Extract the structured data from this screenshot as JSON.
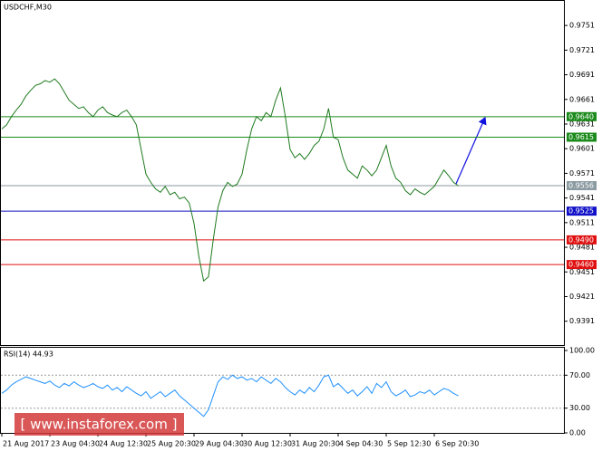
{
  "chart_data": [
    {
      "type": "line",
      "title": "USDCHF,M30",
      "color": "#1f7a1f",
      "values": [
        0.9625,
        0.963,
        0.964,
        0.9648,
        0.9655,
        0.9665,
        0.9672,
        0.9678,
        0.968,
        0.9684,
        0.9682,
        0.9686,
        0.968,
        0.967,
        0.966,
        0.9655,
        0.965,
        0.9652,
        0.9645,
        0.964,
        0.9648,
        0.9652,
        0.9645,
        0.9642,
        0.964,
        0.9645,
        0.9648,
        0.964,
        0.963,
        0.96,
        0.957,
        0.956,
        0.9552,
        0.9548,
        0.9555,
        0.9545,
        0.9548,
        0.954,
        0.9542,
        0.9535,
        0.951,
        0.947,
        0.944,
        0.9445,
        0.949,
        0.953,
        0.955,
        0.956,
        0.9555,
        0.9558,
        0.957,
        0.96,
        0.9625,
        0.964,
        0.9635,
        0.9645,
        0.964,
        0.966,
        0.9675,
        0.964,
        0.96,
        0.959,
        0.9595,
        0.9588,
        0.9595,
        0.9605,
        0.961,
        0.9625,
        0.965,
        0.9615,
        0.9612,
        0.959,
        0.9575,
        0.957,
        0.9565,
        0.958,
        0.9575,
        0.9568,
        0.9575,
        0.959,
        0.9605,
        0.958,
        0.9565,
        0.956,
        0.955,
        0.9545,
        0.9552,
        0.9548,
        0.9545,
        0.955,
        0.9555,
        0.9565,
        0.9575,
        0.9568,
        0.956,
        0.9556
      ],
      "ylim": [
        0.9362,
        0.9782
      ],
      "yticks": [
        0.9751,
        0.9721,
        0.9691,
        0.9661,
        0.9631,
        0.9601,
        0.9571,
        0.9541,
        0.9511,
        0.9481,
        0.9451,
        0.9421,
        0.9391
      ],
      "levels": [
        {
          "value": 0.964,
          "label": "0.9640",
          "color": "#1a8a1a"
        },
        {
          "value": 0.9615,
          "label": "0.9615",
          "color": "#1a8a1a"
        },
        {
          "value": 0.9556,
          "label": "0.9556",
          "color": "#8a9aa0"
        },
        {
          "value": 0.9525,
          "label": "0.9525",
          "color": "#1010c8"
        },
        {
          "value": 0.949,
          "label": "0.9490",
          "color": "#e01010"
        },
        {
          "value": 0.946,
          "label": "0.9460",
          "color": "#e01010"
        }
      ]
    },
    {
      "type": "line",
      "title": "RSI(14) 44.93",
      "color": "#1e90ff",
      "categories": [
        "21 Aug 2017",
        null,
        null,
        null,
        null,
        null,
        null,
        null,
        null,
        null,
        "23 Aug 04:30",
        null,
        null,
        null,
        null,
        null,
        null,
        null,
        null,
        null,
        "24 Aug 12:30",
        null,
        null,
        null,
        null,
        null,
        null,
        null,
        null,
        null,
        "25 Aug 20:30",
        null,
        null,
        null,
        null,
        null,
        null,
        null,
        null,
        null,
        "29 Aug 04:30",
        null,
        null,
        null,
        null,
        null,
        null,
        null,
        null,
        null,
        "30 Aug 12:30",
        null,
        null,
        null,
        null,
        null,
        null,
        null,
        null,
        null,
        "31 Aug 20:30",
        null,
        null,
        null,
        null,
        null,
        null,
        null,
        null,
        null,
        "4 Sep 04:30",
        null,
        null,
        null,
        null,
        null,
        null,
        null,
        null,
        null,
        "5 Sep 12:30",
        null,
        null,
        null,
        null,
        null,
        null,
        null,
        null,
        null,
        "6 Sep 20:30",
        null,
        null,
        null,
        null,
        null
      ],
      "values": [
        48,
        52,
        58,
        62,
        65,
        68,
        66,
        64,
        62,
        60,
        63,
        58,
        55,
        60,
        57,
        62,
        58,
        55,
        57,
        60,
        56,
        54,
        58,
        52,
        55,
        50,
        56,
        52,
        48,
        45,
        50,
        42,
        46,
        50,
        44,
        48,
        52,
        45,
        40,
        35,
        30,
        25,
        20,
        28,
        45,
        62,
        68,
        65,
        70,
        66,
        68,
        64,
        66,
        62,
        68,
        64,
        60,
        66,
        62,
        55,
        50,
        46,
        52,
        48,
        55,
        50,
        58,
        68,
        70,
        56,
        60,
        54,
        48,
        52,
        45,
        50,
        56,
        48,
        60,
        55,
        62,
        50,
        45,
        48,
        52,
        44,
        46,
        50,
        48,
        52,
        46,
        50,
        54,
        52,
        48,
        45
      ],
      "ylim": [
        0,
        100
      ],
      "yticks": [
        {
          "value": 100,
          "label": "100.00"
        },
        {
          "value": 70,
          "label": "70.00"
        },
        {
          "value": 30,
          "label": "30.00"
        },
        {
          "value": 0,
          "label": "0.00"
        }
      ],
      "watermark": "[ www.instaforex.com ]"
    }
  ]
}
